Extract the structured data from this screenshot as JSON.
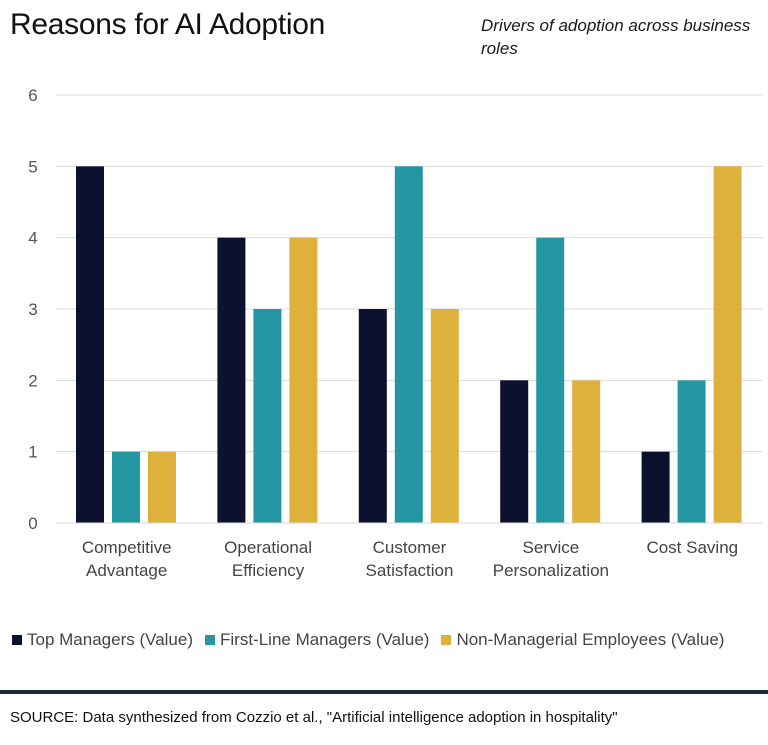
{
  "title": "Reasons for AI Adoption",
  "subtitle": "Drivers of adoption across business roles",
  "source": "SOURCE: Data synthesized from Cozzio et al., \"Artificial intelligence adoption in hospitality\"",
  "chart_data": {
    "type": "bar",
    "title": "Reasons for AI Adoption",
    "subtitle": "Drivers of adoption across business roles",
    "xlabel": "",
    "ylabel": "",
    "ylim": [
      0,
      6
    ],
    "yticks": [
      0,
      1,
      2,
      3,
      4,
      5,
      6
    ],
    "grid": "horizontal",
    "legend_position": "bottom",
    "categories": [
      [
        "Competitive",
        "Advantage"
      ],
      [
        "Operational",
        "Efficiency"
      ],
      [
        "Customer",
        "Satisfaction"
      ],
      [
        "Service",
        "Personalization"
      ],
      [
        "Cost Saving"
      ]
    ],
    "series": [
      {
        "name": "Top Managers (Value)",
        "color": "#0d1130",
        "values": [
          5,
          4,
          3,
          2,
          1
        ]
      },
      {
        "name": "First-Line Managers (Value)",
        "color": "#2597a3",
        "values": [
          1,
          3,
          5,
          4,
          2
        ]
      },
      {
        "name": "Non-Managerial Employees (Value)",
        "color": "#ddb13c",
        "values": [
          1,
          4,
          3,
          2,
          5
        ]
      }
    ]
  }
}
